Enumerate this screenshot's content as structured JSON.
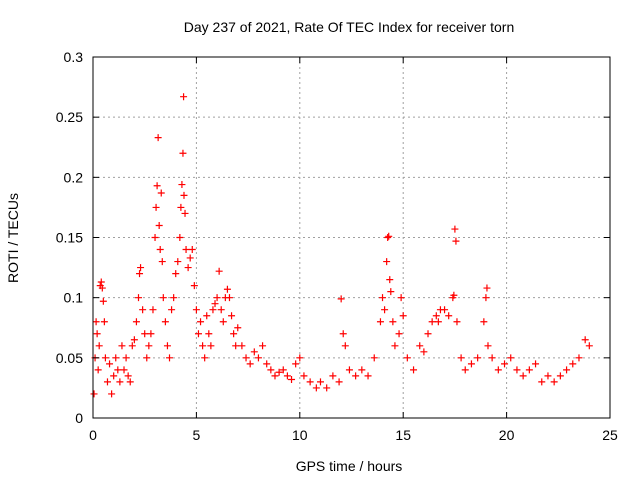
{
  "chart_data": {
    "type": "scatter",
    "title": "Day 237 of 2021, Rate Of TEC Index for receiver torn",
    "xlabel": "GPS time / hours",
    "ylabel": "ROTI / TECUs",
    "xlim": [
      0,
      25
    ],
    "ylim": [
      0,
      0.3
    ],
    "xticks": [
      0,
      5,
      10,
      15,
      20,
      25
    ],
    "yticks": [
      0,
      0.05,
      0.1,
      0.15,
      0.2,
      0.25,
      0.3
    ],
    "xtick_labels": [
      "0",
      "5",
      "10",
      "15",
      "20",
      "25"
    ],
    "ytick_labels": [
      "0",
      "0.05",
      "0.1",
      "0.15",
      "0.2",
      "0.25",
      "0.3"
    ],
    "grid": true,
    "marker": "+",
    "color": "#ff0000",
    "points": [
      [
        0.05,
        0.02
      ],
      [
        0.1,
        0.05
      ],
      [
        0.15,
        0.08
      ],
      [
        0.2,
        0.07
      ],
      [
        0.25,
        0.04
      ],
      [
        0.3,
        0.06
      ],
      [
        0.35,
        0.11
      ],
      [
        0.4,
        0.113
      ],
      [
        0.45,
        0.108
      ],
      [
        0.5,
        0.097
      ],
      [
        0.55,
        0.08
      ],
      [
        0.6,
        0.05
      ],
      [
        0.7,
        0.03
      ],
      [
        0.8,
        0.045
      ],
      [
        0.9,
        0.02
      ],
      [
        1.0,
        0.035
      ],
      [
        1.1,
        0.05
      ],
      [
        1.2,
        0.04
      ],
      [
        1.3,
        0.03
      ],
      [
        1.4,
        0.06
      ],
      [
        1.5,
        0.04
      ],
      [
        1.6,
        0.05
      ],
      [
        1.7,
        0.035
      ],
      [
        1.8,
        0.03
      ],
      [
        1.9,
        0.06
      ],
      [
        2.0,
        0.065
      ],
      [
        2.1,
        0.08
      ],
      [
        2.2,
        0.1
      ],
      [
        2.25,
        0.12
      ],
      [
        2.3,
        0.125
      ],
      [
        2.4,
        0.09
      ],
      [
        2.5,
        0.07
      ],
      [
        2.6,
        0.05
      ],
      [
        2.7,
        0.06
      ],
      [
        2.8,
        0.07
      ],
      [
        2.9,
        0.09
      ],
      [
        3.0,
        0.15
      ],
      [
        3.05,
        0.175
      ],
      [
        3.1,
        0.193
      ],
      [
        3.15,
        0.233
      ],
      [
        3.2,
        0.16
      ],
      [
        3.25,
        0.14
      ],
      [
        3.3,
        0.187
      ],
      [
        3.35,
        0.13
      ],
      [
        3.4,
        0.1
      ],
      [
        3.5,
        0.08
      ],
      [
        3.6,
        0.06
      ],
      [
        3.7,
        0.05
      ],
      [
        3.8,
        0.09
      ],
      [
        3.9,
        0.1
      ],
      [
        4.0,
        0.12
      ],
      [
        4.1,
        0.13
      ],
      [
        4.2,
        0.15
      ],
      [
        4.25,
        0.175
      ],
      [
        4.3,
        0.194
      ],
      [
        4.35,
        0.22
      ],
      [
        4.38,
        0.267
      ],
      [
        4.4,
        0.185
      ],
      [
        4.45,
        0.17
      ],
      [
        4.5,
        0.14
      ],
      [
        4.6,
        0.125
      ],
      [
        4.7,
        0.133
      ],
      [
        4.8,
        0.14
      ],
      [
        4.9,
        0.11
      ],
      [
        5.0,
        0.09
      ],
      [
        5.1,
        0.07
      ],
      [
        5.2,
        0.08
      ],
      [
        5.3,
        0.06
      ],
      [
        5.4,
        0.05
      ],
      [
        5.5,
        0.085
      ],
      [
        5.6,
        0.07
      ],
      [
        5.7,
        0.06
      ],
      [
        5.8,
        0.09
      ],
      [
        5.9,
        0.095
      ],
      [
        6.0,
        0.1
      ],
      [
        6.1,
        0.122
      ],
      [
        6.2,
        0.09
      ],
      [
        6.3,
        0.08
      ],
      [
        6.4,
        0.1
      ],
      [
        6.5,
        0.107
      ],
      [
        6.6,
        0.1
      ],
      [
        6.7,
        0.085
      ],
      [
        6.8,
        0.07
      ],
      [
        6.9,
        0.06
      ],
      [
        7.0,
        0.075
      ],
      [
        7.2,
        0.06
      ],
      [
        7.4,
        0.05
      ],
      [
        7.6,
        0.045
      ],
      [
        7.8,
        0.055
      ],
      [
        8.0,
        0.05
      ],
      [
        8.2,
        0.06
      ],
      [
        8.4,
        0.045
      ],
      [
        8.6,
        0.04
      ],
      [
        8.8,
        0.035
      ],
      [
        9.0,
        0.038
      ],
      [
        9.2,
        0.04
      ],
      [
        9.4,
        0.035
      ],
      [
        9.6,
        0.032
      ],
      [
        9.8,
        0.045
      ],
      [
        10.0,
        0.05
      ],
      [
        10.2,
        0.035
      ],
      [
        10.5,
        0.03
      ],
      [
        10.8,
        0.025
      ],
      [
        11.0,
        0.03
      ],
      [
        11.3,
        0.025
      ],
      [
        11.6,
        0.035
      ],
      [
        11.9,
        0.03
      ],
      [
        12.0,
        0.099
      ],
      [
        12.1,
        0.07
      ],
      [
        12.2,
        0.06
      ],
      [
        12.4,
        0.04
      ],
      [
        12.7,
        0.035
      ],
      [
        13.0,
        0.04
      ],
      [
        13.3,
        0.035
      ],
      [
        13.6,
        0.05
      ],
      [
        13.9,
        0.08
      ],
      [
        14.0,
        0.1
      ],
      [
        14.1,
        0.09
      ],
      [
        14.2,
        0.13
      ],
      [
        14.25,
        0.15
      ],
      [
        14.3,
        0.151
      ],
      [
        14.35,
        0.115
      ],
      [
        14.4,
        0.105
      ],
      [
        14.5,
        0.08
      ],
      [
        14.6,
        0.06
      ],
      [
        14.8,
        0.07
      ],
      [
        14.9,
        0.1
      ],
      [
        15.0,
        0.085
      ],
      [
        15.2,
        0.05
      ],
      [
        15.5,
        0.04
      ],
      [
        15.8,
        0.06
      ],
      [
        16.0,
        0.055
      ],
      [
        16.2,
        0.07
      ],
      [
        16.4,
        0.08
      ],
      [
        16.6,
        0.085
      ],
      [
        16.7,
        0.08
      ],
      [
        16.8,
        0.09
      ],
      [
        17.0,
        0.09
      ],
      [
        17.2,
        0.085
      ],
      [
        17.4,
        0.1
      ],
      [
        17.45,
        0.102
      ],
      [
        17.5,
        0.157
      ],
      [
        17.55,
        0.147
      ],
      [
        17.6,
        0.08
      ],
      [
        17.8,
        0.05
      ],
      [
        18.0,
        0.04
      ],
      [
        18.3,
        0.045
      ],
      [
        18.6,
        0.05
      ],
      [
        18.9,
        0.08
      ],
      [
        19.0,
        0.1
      ],
      [
        19.05,
        0.108
      ],
      [
        19.1,
        0.06
      ],
      [
        19.3,
        0.05
      ],
      [
        19.6,
        0.04
      ],
      [
        19.9,
        0.045
      ],
      [
        20.2,
        0.05
      ],
      [
        20.5,
        0.04
      ],
      [
        20.8,
        0.035
      ],
      [
        21.1,
        0.04
      ],
      [
        21.4,
        0.045
      ],
      [
        21.7,
        0.03
      ],
      [
        22.0,
        0.035
      ],
      [
        22.3,
        0.03
      ],
      [
        22.6,
        0.035
      ],
      [
        22.9,
        0.04
      ],
      [
        23.2,
        0.045
      ],
      [
        23.5,
        0.05
      ],
      [
        23.8,
        0.065
      ],
      [
        24.0,
        0.06
      ]
    ]
  }
}
